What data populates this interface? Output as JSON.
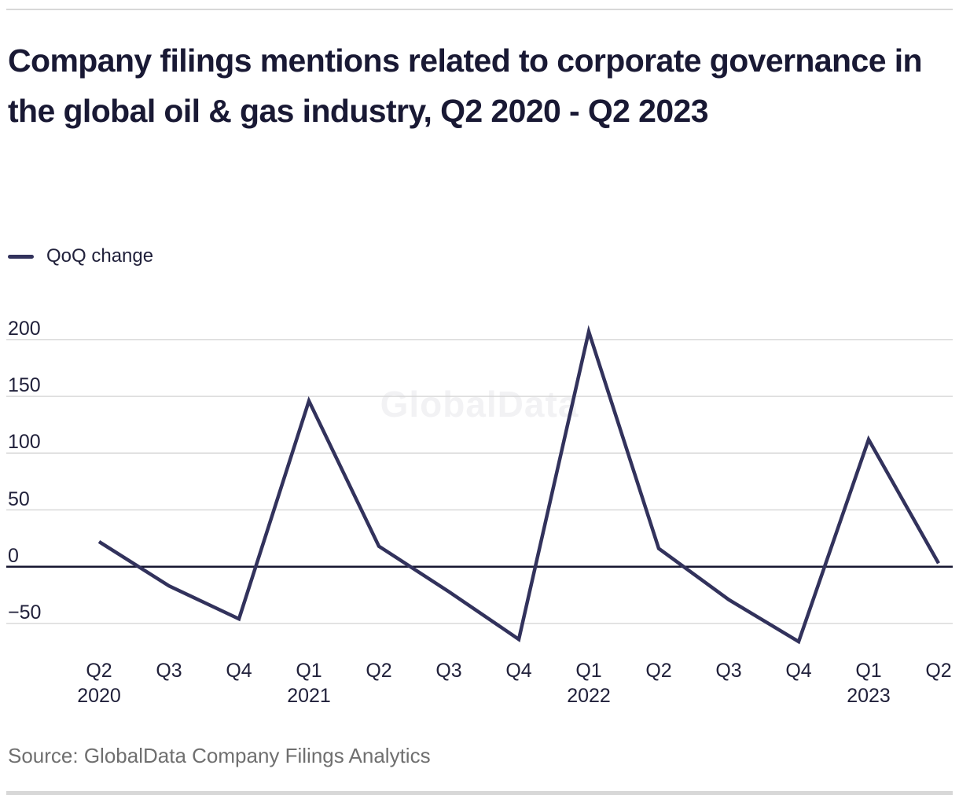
{
  "header": {
    "title": "Company filings mentions related to corporate governance in the global oil & gas industry, Q2 2020 - Q2 2023"
  },
  "legend": {
    "items": [
      {
        "label": "QoQ change"
      }
    ]
  },
  "chart": {
    "watermark": "GlobalData"
  },
  "footer": {
    "source": "Source: GlobalData Company Filings Analytics"
  },
  "colors": {
    "title_text": "#191934",
    "axis_text": "#21213b",
    "series_line": "#32325c",
    "zero_axis": "#161630",
    "gridline": "#d9d9d9",
    "divider": "#d8d8d8",
    "source_text": "#6f6f6f",
    "watermark_text": "#f2f2f4"
  },
  "chart_data": {
    "type": "line",
    "title": "Company filings mentions related to corporate governance in the global oil & gas industry, Q2 2020 - Q2 2023",
    "categories": [
      "Q2 2020",
      "Q3 2020",
      "Q4 2020",
      "Q1 2021",
      "Q2 2021",
      "Q3 2021",
      "Q4 2021",
      "Q1 2022",
      "Q2 2022",
      "Q3 2022",
      "Q4 2022",
      "Q1 2023",
      "Q2 2023"
    ],
    "x_ticks": [
      {
        "label": "Q2",
        "year": "2020"
      },
      {
        "label": "Q3"
      },
      {
        "label": "Q4"
      },
      {
        "label": "Q1",
        "year": "2021"
      },
      {
        "label": "Q2"
      },
      {
        "label": "Q3"
      },
      {
        "label": "Q4"
      },
      {
        "label": "Q1",
        "year": "2022"
      },
      {
        "label": "Q2"
      },
      {
        "label": "Q3"
      },
      {
        "label": "Q4"
      },
      {
        "label": "Q1",
        "year": "2023"
      },
      {
        "label": "Q2"
      }
    ],
    "series": [
      {
        "name": "QoQ change",
        "values": [
          22,
          -17,
          -46,
          146,
          18,
          -22,
          -64,
          207,
          16,
          -29,
          -66,
          112,
          3
        ]
      }
    ],
    "y_ticks": [
      200,
      150,
      100,
      50,
      0,
      -50
    ],
    "ylim": [
      -80,
      215
    ],
    "xlabel": "",
    "ylabel": "",
    "grid": "horizontal",
    "legend_position": "top-left"
  }
}
